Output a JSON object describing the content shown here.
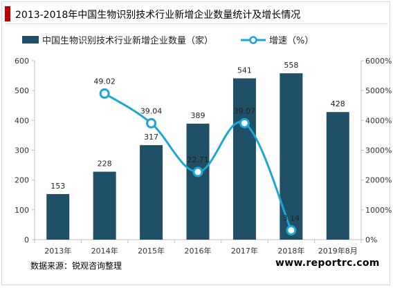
{
  "header": {
    "title": "2013-2018年中国生物识别技术行业新增企业数量统计及增长情况"
  },
  "footer": {
    "source": "数据来源：锐观咨询整理",
    "website": "www.reportrc.com"
  },
  "colors": {
    "bar": "#1f5068",
    "line": "#1aa7d6",
    "title_accent": "#c00000"
  },
  "chart_data": {
    "type": "bar",
    "title": "",
    "categories": [
      "2013年",
      "2014年",
      "2015年",
      "2016年",
      "2017年",
      "2018年",
      "2019年8月"
    ],
    "series": [
      {
        "name": "中国生物识别技术行业新增企业数量（家）",
        "type": "bar",
        "axis": "left",
        "values": [
          153,
          228,
          317,
          389,
          541,
          558,
          428
        ]
      },
      {
        "name": "增速（%）",
        "type": "line",
        "axis": "right",
        "values": [
          null,
          4902,
          3904,
          2271,
          3907,
          314,
          null
        ],
        "labels": [
          null,
          "49.02",
          "39.04",
          "22.71",
          "39.07",
          "3.14",
          null
        ]
      }
    ],
    "y_left": {
      "min": 0,
      "max": 600,
      "ticks": [
        "0",
        "100",
        "200",
        "300",
        "400",
        "500",
        "600"
      ]
    },
    "y_right": {
      "min": 0,
      "max": 6000,
      "ticks": [
        "0%",
        "1000%",
        "2000%",
        "3000%",
        "4000%",
        "5000%",
        "6000%"
      ]
    },
    "legend_position": "top",
    "grid": false
  }
}
